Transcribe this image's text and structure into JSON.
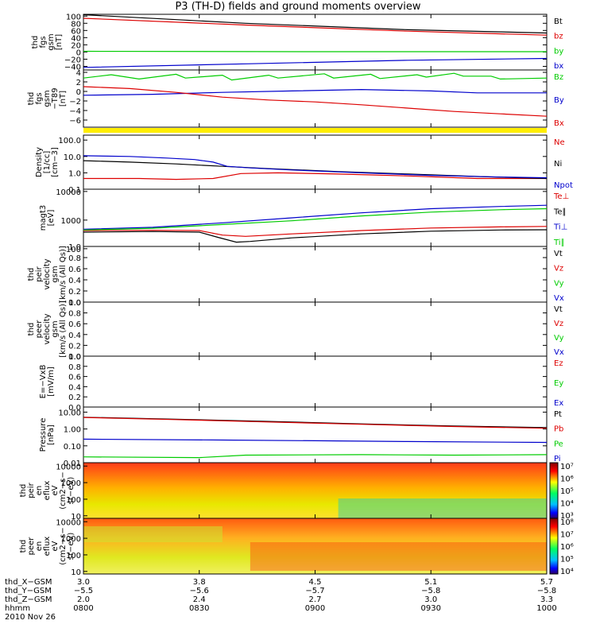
{
  "title": "P3 (TH-D) fields and ground moments overview",
  "chart_data": {
    "type": "line",
    "x_time_ticks": [
      "0800",
      "0830",
      "0900",
      "0930",
      "1000"
    ],
    "panels": [
      {
        "id": "fgs",
        "ylabel": [
          "thd",
          "fgs",
          "gsm",
          "[nT]"
        ],
        "ylim": [
          -50,
          105
        ],
        "yticks": [
          "100",
          "80",
          "60",
          "40",
          "20",
          "0",
          "−20",
          "−40"
        ],
        "ytick_values": [
          100,
          80,
          60,
          40,
          20,
          0,
          -20,
          -40
        ],
        "series": [
          {
            "name": "Bt",
            "color": "#000000",
            "points": [
              [
                0,
                104
              ],
              [
                0.35,
                80
              ],
              [
                0.7,
                62
              ],
              [
                1,
                53
              ]
            ]
          },
          {
            "name": "bz",
            "color": "#dd0000",
            "points": [
              [
                0,
                94
              ],
              [
                0.35,
                75
              ],
              [
                0.7,
                58
              ],
              [
                1,
                47
              ]
            ]
          },
          {
            "name": "by",
            "color": "#00cc00",
            "points": [
              [
                0,
                2
              ],
              [
                0.5,
                1
              ],
              [
                1,
                1
              ]
            ]
          },
          {
            "name": "bx",
            "color": "#0000cc",
            "points": [
              [
                0,
                -43
              ],
              [
                0.35,
                -33
              ],
              [
                0.7,
                -23
              ],
              [
                1,
                -18
              ]
            ]
          }
        ]
      },
      {
        "id": "fgs-dt89",
        "ylabel": [
          "thd",
          "fgs",
          "gsm",
          "−T89",
          "[nT]"
        ],
        "ylim": [
          -7.5,
          4.5
        ],
        "yticks": [
          "4",
          "2",
          "0",
          "−2",
          "−4",
          "−6"
        ],
        "ytick_values": [
          4,
          2,
          0,
          -2,
          -4,
          -6
        ],
        "series": [
          {
            "name": "Bz",
            "color": "#00cc00",
            "points": [
              [
                0,
                2.8
              ],
              [
                0.06,
                3.5
              ],
              [
                0.12,
                2.6
              ],
              [
                0.2,
                3.6
              ],
              [
                0.22,
                2.8
              ],
              [
                0.3,
                3.4
              ],
              [
                0.32,
                2.4
              ],
              [
                0.4,
                3.4
              ],
              [
                0.42,
                2.8
              ],
              [
                0.52,
                3.7
              ],
              [
                0.54,
                2.8
              ],
              [
                0.62,
                3.6
              ],
              [
                0.64,
                2.7
              ],
              [
                0.72,
                3.5
              ],
              [
                0.74,
                3.0
              ],
              [
                0.8,
                3.8
              ],
              [
                0.82,
                3.2
              ],
              [
                0.88,
                3.2
              ],
              [
                0.9,
                2.6
              ],
              [
                1,
                2.8
              ]
            ]
          },
          {
            "name": "By",
            "color": "#0000cc",
            "points": [
              [
                0,
                -0.8
              ],
              [
                0.15,
                -0.6
              ],
              [
                0.3,
                -0.2
              ],
              [
                0.45,
                0.1
              ],
              [
                0.6,
                0.4
              ],
              [
                0.75,
                0.1
              ],
              [
                0.85,
                -0.3
              ],
              [
                1,
                -0.3
              ]
            ]
          },
          {
            "name": "Bx",
            "color": "#dd0000",
            "points": [
              [
                0,
                1.0
              ],
              [
                0.1,
                0.6
              ],
              [
                0.2,
                -0.2
              ],
              [
                0.3,
                -1.2
              ],
              [
                0.4,
                -1.8
              ],
              [
                0.5,
                -2.2
              ],
              [
                0.6,
                -2.8
              ],
              [
                0.7,
                -3.5
              ],
              [
                0.8,
                -4.2
              ],
              [
                0.9,
                -4.7
              ],
              [
                1,
                -5.2
              ]
            ]
          }
        ]
      },
      {
        "id": "density",
        "ylabel": [
          "Density",
          "[1/cc]",
          "[cm−3]"
        ],
        "log": true,
        "ylim": [
          0.1,
          200
        ],
        "yticks": [
          "100.0",
          "10.0",
          "1.0",
          "0.1"
        ],
        "ytick_values": [
          100,
          10,
          1,
          0.1
        ],
        "series": [
          {
            "name": "Ne",
            "color": "#dd0000",
            "points": [
              [
                0,
                0.45
              ],
              [
                0.12,
                0.45
              ],
              [
                0.2,
                0.4
              ],
              [
                0.28,
                0.45
              ],
              [
                0.34,
                0.9
              ],
              [
                0.42,
                1.0
              ],
              [
                0.55,
                0.85
              ],
              [
                0.7,
                0.65
              ],
              [
                0.85,
                0.45
              ],
              [
                1,
                0.45
              ]
            ]
          },
          {
            "name": "Ni",
            "color": "#000000",
            "points": [
              [
                0,
                5.5
              ],
              [
                0.1,
                4.5
              ],
              [
                0.2,
                3.5
              ],
              [
                0.3,
                2.5
              ],
              [
                0.4,
                1.8
              ],
              [
                0.55,
                1.2
              ],
              [
                0.7,
                0.85
              ],
              [
                0.85,
                0.6
              ],
              [
                1,
                0.45
              ]
            ]
          },
          {
            "name": "Npot",
            "color": "#0000cc",
            "points": [
              [
                0,
                11
              ],
              [
                0.1,
                10
              ],
              [
                0.18,
                8
              ],
              [
                0.24,
                6.5
              ],
              [
                0.28,
                4.5
              ],
              [
                0.31,
                2.5
              ],
              [
                0.36,
                2.0
              ],
              [
                0.45,
                1.5
              ],
              [
                0.6,
                1.0
              ],
              [
                0.75,
                0.7
              ],
              [
                0.9,
                0.55
              ],
              [
                1,
                0.5
              ]
            ]
          }
        ]
      },
      {
        "id": "temp",
        "ylabel": [
          "magt3",
          "[eV]"
        ],
        "log": true,
        "ylim": [
          120,
          12000
        ],
        "yticks": [
          "10000",
          "1000",
          "100"
        ],
        "ytick_values": [
          10000,
          1000,
          100
        ],
        "series": [
          {
            "name": "Te⊥",
            "color": "#dd0000",
            "points": [
              [
                0,
                430
              ],
              [
                0.15,
                440
              ],
              [
                0.25,
                430
              ],
              [
                0.3,
                300
              ],
              [
                0.35,
                270
              ],
              [
                0.45,
                330
              ],
              [
                0.6,
                430
              ],
              [
                0.75,
                530
              ],
              [
                0.9,
                580
              ],
              [
                1,
                600
              ]
            ]
          },
          {
            "name": "Te∥",
            "color": "#000000",
            "points": [
              [
                0,
                380
              ],
              [
                0.15,
                400
              ],
              [
                0.25,
                380
              ],
              [
                0.29,
                250
              ],
              [
                0.33,
                170
              ],
              [
                0.36,
                180
              ],
              [
                0.45,
                240
              ],
              [
                0.6,
                330
              ],
              [
                0.75,
                410
              ],
              [
                0.9,
                450
              ],
              [
                1,
                460
              ]
            ]
          },
          {
            "name": "Ti⊥",
            "color": "#0000cc",
            "points": [
              [
                0,
                480
              ],
              [
                0.15,
                560
              ],
              [
                0.3,
                800
              ],
              [
                0.45,
                1200
              ],
              [
                0.6,
                1800
              ],
              [
                0.75,
                2500
              ],
              [
                0.9,
                3000
              ],
              [
                1,
                3300
              ]
            ]
          },
          {
            "name": "Ti∥",
            "color": "#00cc00",
            "points": [
              [
                0,
                450
              ],
              [
                0.15,
                520
              ],
              [
                0.3,
                700
              ],
              [
                0.45,
                950
              ],
              [
                0.6,
                1400
              ],
              [
                0.75,
                1900
              ],
              [
                0.9,
                2300
              ],
              [
                1,
                2500
              ]
            ]
          }
        ]
      },
      {
        "id": "ve",
        "ylabel": [
          "thd",
          "peir",
          "velocity",
          "gsm",
          "[km/s (All Qs)]"
        ],
        "ylim": [
          0,
          1
        ],
        "yticks": [
          "1.0",
          "0.8",
          "0.6",
          "0.4",
          "0.2",
          "0.0"
        ],
        "ytick_values": [
          1.0,
          0.8,
          0.6,
          0.4,
          0.2,
          0.0
        ],
        "series": [
          {
            "name": "Vt",
            "color": "#000000",
            "points": []
          },
          {
            "name": "Vz",
            "color": "#dd0000",
            "points": []
          },
          {
            "name": "Vy",
            "color": "#00cc00",
            "points": []
          },
          {
            "name": "Vx",
            "color": "#0000cc",
            "points": []
          }
        ]
      },
      {
        "id": "vi",
        "ylabel": [
          "thd",
          "peer",
          "velocity",
          "gsm",
          "[km/s (All Qs)]"
        ],
        "ylim": [
          0,
          1
        ],
        "yticks": [
          "1.0",
          "0.8",
          "0.6",
          "0.4",
          "0.2",
          "0.0"
        ],
        "ytick_values": [
          1.0,
          0.8,
          0.6,
          0.4,
          0.2,
          0.0
        ],
        "series": [
          {
            "name": "Vt",
            "color": "#000000",
            "points": []
          },
          {
            "name": "Vz",
            "color": "#dd0000",
            "points": []
          },
          {
            "name": "Vy",
            "color": "#00cc00",
            "points": []
          },
          {
            "name": "Vx",
            "color": "#0000cc",
            "points": []
          }
        ]
      },
      {
        "id": "evxb",
        "ylabel": [
          "E=−VxB",
          "[mV/m]"
        ],
        "ylim": [
          0,
          1
        ],
        "yticks": [
          "1.0",
          "0.8",
          "0.6",
          "0.4",
          "0.2",
          "0.0"
        ],
        "ytick_values": [
          1.0,
          0.8,
          0.6,
          0.4,
          0.2,
          0.0
        ],
        "series": [
          {
            "name": "Ez",
            "color": "#dd0000",
            "points": []
          },
          {
            "name": "Ey",
            "color": "#00cc00",
            "points": []
          },
          {
            "name": "Ex",
            "color": "#0000cc",
            "points": []
          }
        ]
      },
      {
        "id": "pressure",
        "ylabel": [
          "Pressure",
          "[nPa]"
        ],
        "log": true,
        "ylim": [
          0.01,
          20
        ],
        "yticks": [
          "10.00",
          "1.00",
          "0.10",
          "0.01"
        ],
        "ytick_values": [
          10,
          1,
          0.1,
          0.01
        ],
        "series": [
          {
            "name": "Pt",
            "color": "#000000",
            "points": [
              [
                0,
                5.0
              ],
              [
                0.2,
                3.8
              ],
              [
                0.4,
                2.8
              ],
              [
                0.6,
                2.0
              ],
              [
                0.8,
                1.5
              ],
              [
                1,
                1.2
              ]
            ]
          },
          {
            "name": "Pb",
            "color": "#dd0000",
            "points": [
              [
                0,
                4.8
              ],
              [
                0.2,
                3.6
              ],
              [
                0.4,
                2.6
              ],
              [
                0.6,
                1.9
              ],
              [
                0.8,
                1.4
              ],
              [
                1,
                1.1
              ]
            ]
          },
          {
            "name": "Pe",
            "color": "#00cc00",
            "points": [
              [
                0,
                0.022
              ],
              [
                0.25,
                0.02
              ],
              [
                0.35,
                0.028
              ],
              [
                0.6,
                0.03
              ],
              [
                0.8,
                0.028
              ],
              [
                1,
                0.03
              ]
            ]
          },
          {
            "name": "Pi",
            "color": "#0000cc",
            "points": [
              [
                0,
                0.25
              ],
              [
                0.3,
                0.22
              ],
              [
                0.5,
                0.2
              ],
              [
                0.7,
                0.18
              ],
              [
                1,
                0.16
              ]
            ]
          }
        ]
      }
    ],
    "spectrograms": [
      {
        "id": "peir-eflux",
        "type": "heatmap",
        "ylabel": [
          "thd",
          "peir",
          "en",
          "eflux",
          "eV",
          "(cm2−s−",
          "sr−eV)"
        ],
        "yticks": [
          "10000",
          "1000",
          "100",
          "10"
        ],
        "colorbar_ticks": [
          "10⁷",
          "10⁶",
          "10⁵",
          "10⁴",
          "10³"
        ],
        "colorbar_values": [
          7,
          6,
          5,
          4,
          3
        ]
      },
      {
        "id": "peer-eflux",
        "type": "heatmap",
        "ylabel": [
          "thd",
          "peer",
          "en",
          "eflux",
          "eV",
          "(cm2−s−",
          "sr−eV)"
        ],
        "yticks": [
          "10000",
          "1000",
          "100",
          "10"
        ],
        "colorbar_ticks": [
          "10⁸",
          "10⁷",
          "10⁶",
          "10⁵",
          "10⁴"
        ],
        "colorbar_values": [
          8,
          7,
          6,
          5,
          4
        ]
      }
    ]
  },
  "footer": {
    "rows": [
      {
        "label": "thd_X−GSM",
        "values": [
          "3.0",
          "3.8",
          "4.5",
          "5.1",
          "5.7"
        ]
      },
      {
        "label": "thd_Y−GSM",
        "values": [
          "−5.5",
          "−5.6",
          "−5.7",
          "−5.8",
          "−5.8"
        ]
      },
      {
        "label": "thd_Z−GSM",
        "values": [
          "2.0",
          "2.4",
          "2.7",
          "3.0",
          "3.3"
        ]
      },
      {
        "label": "hhmm",
        "values": [
          "0800",
          "0830",
          "0900",
          "0930",
          "1000"
        ]
      }
    ],
    "date": "2010 Nov 26"
  }
}
